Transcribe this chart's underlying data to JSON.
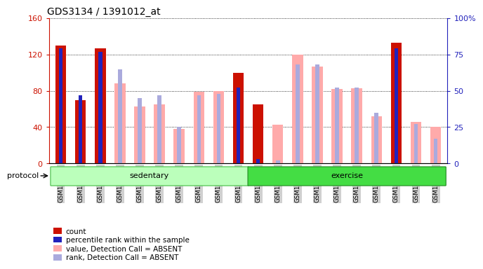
{
  "title": "GDS3134 / 1391012_at",
  "samples": [
    "GSM184851",
    "GSM184852",
    "GSM184853",
    "GSM184854",
    "GSM184855",
    "GSM184856",
    "GSM184857",
    "GSM184858",
    "GSM184859",
    "GSM184860",
    "GSM184861",
    "GSM184862",
    "GSM184863",
    "GSM184864",
    "GSM184865",
    "GSM184866",
    "GSM184867",
    "GSM184868",
    "GSM184869",
    "GSM184870"
  ],
  "count": [
    130,
    70,
    127,
    0,
    0,
    0,
    0,
    0,
    0,
    100,
    65,
    0,
    0,
    0,
    0,
    0,
    0,
    133,
    0,
    0
  ],
  "rank_pct": [
    79,
    47,
    77,
    0,
    0,
    0,
    0,
    0,
    0,
    52,
    3,
    0,
    0,
    0,
    0,
    0,
    0,
    79,
    0,
    0
  ],
  "value_absent": [
    0,
    0,
    0,
    88,
    63,
    65,
    38,
    79,
    80,
    0,
    0,
    43,
    120,
    107,
    82,
    83,
    52,
    0,
    46,
    40
  ],
  "rank_absent": [
    0,
    0,
    0,
    65,
    45,
    47,
    25,
    47,
    48,
    0,
    0,
    2,
    68,
    68,
    52,
    52,
    35,
    0,
    27,
    17
  ],
  "sedentary_count": 10,
  "exercise_count": 10,
  "ylim_left": [
    0,
    160
  ],
  "ylim_right": [
    0,
    100
  ],
  "yticks_left": [
    0,
    40,
    80,
    120,
    160
  ],
  "yticks_right": [
    0,
    25,
    50,
    75,
    100
  ],
  "color_count": "#cc1100",
  "color_rank": "#2222bb",
  "color_value_absent": "#ffaaaa",
  "color_rank_absent": "#aaaadd",
  "color_sedentary_bg": "#bbffbb",
  "color_sedentary_border": "#44bb44",
  "color_exercise_bg": "#44dd44",
  "color_exercise_border": "#228822",
  "protocol_label": "protocol",
  "sedentary_label": "sedentary",
  "exercise_label": "exercise",
  "legend_items": [
    {
      "label": "count",
      "color": "#cc1100"
    },
    {
      "label": "percentile rank within the sample",
      "color": "#2222bb"
    },
    {
      "label": "value, Detection Call = ABSENT",
      "color": "#ffaaaa"
    },
    {
      "label": "rank, Detection Call = ABSENT",
      "color": "#aaaadd"
    }
  ]
}
